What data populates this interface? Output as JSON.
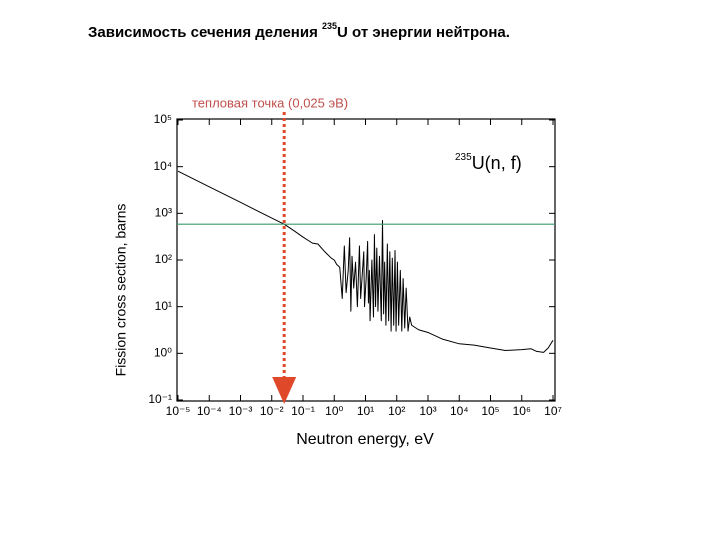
{
  "title_parts": {
    "before": "Зависимость сечения деления ",
    "sup": "235",
    "after": "U от энергии нейтрона."
  },
  "chart_data": {
    "type": "line",
    "annotation": "тепловая точка (0,025 эВ)",
    "curve_label": {
      "sup": "235",
      "text": "U(n, f)"
    },
    "xlabel": "Neutron energy, eV",
    "ylabel": "Fission cross section, barns",
    "xlog": true,
    "ylog": true,
    "xlim": [
      1e-05,
      10000000
    ],
    "ylim": [
      0.1,
      100000
    ],
    "xticks": [
      {
        "value": 1e-05,
        "label": "10⁻⁵"
      },
      {
        "value": 0.0001,
        "label": "10⁻⁴"
      },
      {
        "value": 0.001,
        "label": "10⁻³"
      },
      {
        "value": 0.01,
        "label": "10⁻²"
      },
      {
        "value": 0.1,
        "label": "10⁻¹"
      },
      {
        "value": 1,
        "label": "10⁰"
      },
      {
        "value": 10,
        "label": "10¹"
      },
      {
        "value": 100,
        "label": "10²"
      },
      {
        "value": 1000,
        "label": "10³"
      },
      {
        "value": 10000,
        "label": "10⁴"
      },
      {
        "value": 100000,
        "label": "10⁵"
      },
      {
        "value": 1000000,
        "label": "10⁶"
      },
      {
        "value": 10000000,
        "label": "10⁷"
      }
    ],
    "yticks": [
      {
        "value": 100000,
        "label": "10⁵"
      },
      {
        "value": 10000,
        "label": "10⁴"
      },
      {
        "value": 1000,
        "label": "10³"
      },
      {
        "value": 100,
        "label": "10²"
      },
      {
        "value": 10,
        "label": "10¹"
      },
      {
        "value": 1,
        "label": "10⁰"
      },
      {
        "value": 0.1,
        "label": "10⁻¹"
      }
    ],
    "hline": {
      "value": 585,
      "color": "#3a9a6a"
    },
    "vline": {
      "value": 0.025,
      "color": "#e0482a"
    },
    "series": [
      {
        "color": "#000000",
        "x": [
          1e-05,
          0.0001,
          0.001,
          0.01,
          0.025,
          0.05,
          0.1,
          0.2,
          0.3,
          0.5,
          0.8,
          1.0,
          1.2,
          1.5,
          1.8,
          2.1,
          2.4,
          2.8,
          3.1,
          3.4,
          3.7,
          4.2,
          4.8,
          5.5,
          6.4,
          7,
          8.8,
          9.3,
          10.5,
          11.7,
          12.4,
          13.3,
          14,
          16,
          18,
          19.3,
          21,
          23,
          25,
          28,
          32,
          35,
          38,
          41,
          45,
          50,
          55,
          60,
          66,
          72,
          80,
          88,
          95,
          105,
          115,
          130,
          145,
          160,
          180,
          200,
          230,
          260,
          300,
          500,
          1000,
          3000,
          10000,
          30000,
          100000,
          300000,
          1000000,
          2000000,
          3000000,
          5000000,
          7000000,
          10000000
        ],
        "values": [
          8000,
          3700,
          1720,
          790,
          585,
          430,
          310,
          230,
          220,
          150,
          110,
          100,
          80,
          70,
          15,
          200,
          20,
          60,
          300,
          8,
          120,
          25,
          90,
          10,
          200,
          15,
          150,
          10,
          40,
          250,
          12,
          60,
          5,
          100,
          6,
          350,
          10,
          180,
          8,
          120,
          5,
          700,
          7,
          90,
          4,
          220,
          5,
          150,
          3,
          110,
          4,
          160,
          3,
          90,
          4,
          60,
          3,
          40,
          3.5,
          25,
          3,
          6,
          4,
          3.2,
          2.8,
          2.0,
          1.6,
          1.5,
          1.3,
          1.15,
          1.2,
          1.25,
          1.1,
          1.05,
          1.3,
          1.9
        ]
      }
    ]
  }
}
